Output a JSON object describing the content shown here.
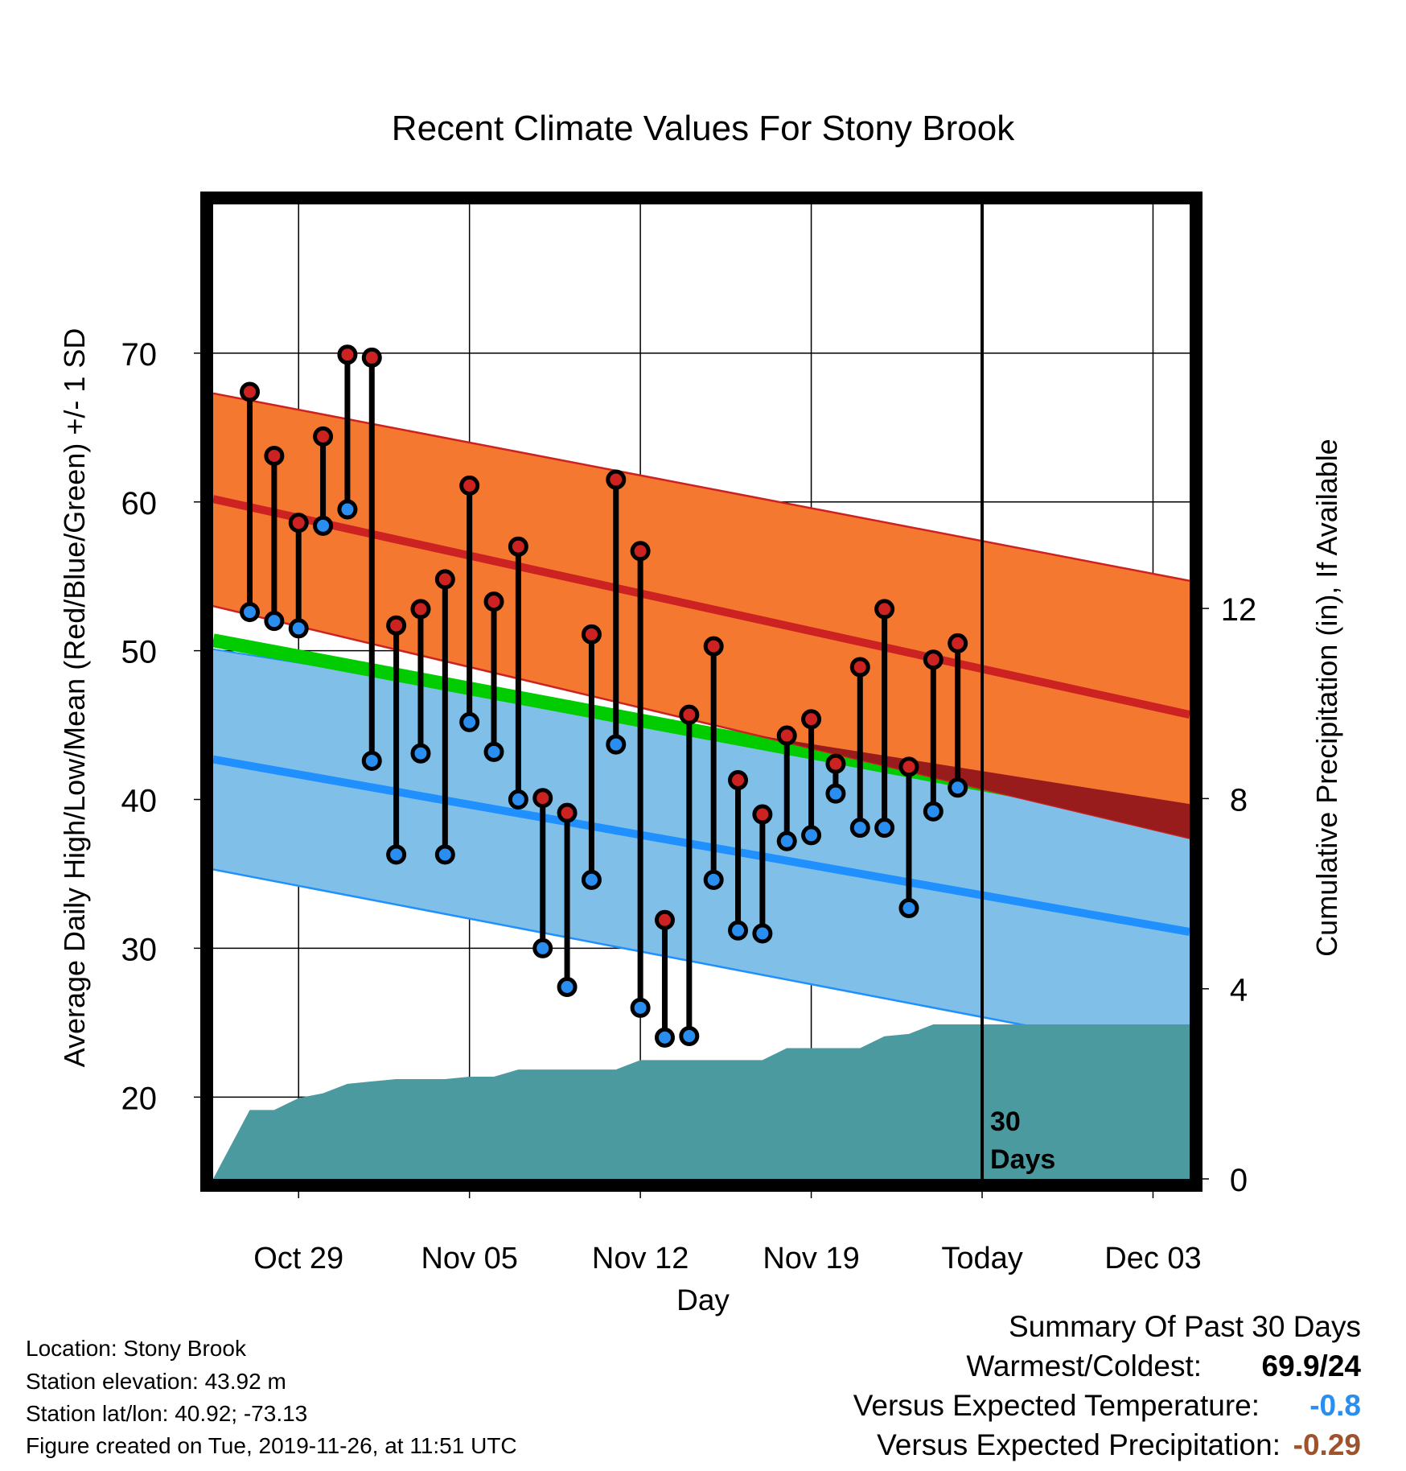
{
  "chart_data": {
    "type": "line",
    "title": "Recent Climate Values For Stony Brook",
    "xlabel": "Day",
    "ylabel": "Average Daily High/Low/Mean (Red/Blue/Green) +/- 1 SD",
    "y2label": "Cumulative Precipitation (in), If Available",
    "ylim": [
      14.5,
      80
    ],
    "y2lim": [
      0,
      20.5
    ],
    "yticks": [
      "20",
      "30",
      "40",
      "50",
      "60",
      "70"
    ],
    "y2ticks": [
      "0",
      "4",
      "8",
      "12"
    ],
    "xlim_days": [
      -3.5,
      36.5
    ],
    "xticks": [
      {
        "day": 0,
        "label": "Oct 29"
      },
      {
        "day": 7,
        "label": "Nov 05"
      },
      {
        "day": 14,
        "label": "Nov 12"
      },
      {
        "day": 21,
        "label": "Nov 19"
      },
      {
        "day": 28,
        "label": "Today"
      },
      {
        "day": 35,
        "label": "Dec 03"
      }
    ],
    "today_marker": {
      "day": 28,
      "label_line1": "30",
      "label_line2": "Days"
    },
    "normals": {
      "high_mean": {
        "start": 60.2,
        "end": 45.7
      },
      "high_upper": {
        "start": 67.3,
        "end": 54.7
      },
      "high_lower": {
        "start": 53.0,
        "end": 37.4
      },
      "low_mean": {
        "start": 42.7,
        "end": 31.1
      },
      "low_upper": {
        "start": 50.1,
        "end": 39.7
      },
      "low_lower": {
        "start": 35.3,
        "end": 22.7
      },
      "mean_mean": {
        "start": 50.7,
        "end": 38.4
      }
    },
    "colors": {
      "high_band": "#f47830",
      "high_line": "#cc2222",
      "low_band": "#80c0e8",
      "low_line": "#2090ff",
      "mean_line": "#00cc00",
      "overlap": "#991c1c",
      "precip": "#4a9aa0",
      "high_dot": "#cc2222",
      "low_dot": "#2a8ef0"
    },
    "series": [
      {
        "name": "High",
        "days": [
          -2,
          -1,
          0,
          1,
          2,
          3,
          4,
          5,
          6,
          7,
          8,
          9,
          10,
          11,
          12,
          13,
          14,
          15,
          16,
          17,
          18,
          19,
          20,
          21,
          22,
          23,
          24,
          25,
          26,
          27
        ],
        "values": [
          67.4,
          63.1,
          58.6,
          64.4,
          69.9,
          69.7,
          51.7,
          52.8,
          54.8,
          61.1,
          53.3,
          57.0,
          40.1,
          39.1,
          51.1,
          61.5,
          56.7,
          31.9,
          45.7,
          50.3,
          41.3,
          39.0,
          44.3,
          45.4,
          42.4,
          48.9,
          52.8,
          42.2,
          49.4,
          50.5
        ]
      },
      {
        "name": "Low",
        "days": [
          -2,
          -1,
          0,
          1,
          2,
          3,
          4,
          5,
          6,
          7,
          8,
          9,
          10,
          11,
          12,
          13,
          14,
          15,
          16,
          17,
          18,
          19,
          20,
          21,
          22,
          23,
          24,
          25,
          26,
          27
        ],
        "values": [
          52.6,
          52.0,
          51.5,
          58.4,
          59.5,
          42.6,
          36.3,
          43.1,
          36.3,
          45.2,
          43.2,
          40.0,
          30.0,
          27.4,
          34.6,
          43.7,
          26.0,
          24.0,
          24.1,
          34.6,
          31.2,
          31.0,
          37.2,
          37.6,
          40.4,
          38.1,
          38.1,
          32.7,
          39.2,
          40.8
        ]
      },
      {
        "name": "Cumulative Precipitation",
        "days": [
          -3.5,
          -2,
          -1,
          0,
          1,
          2,
          3,
          4,
          5,
          6,
          7,
          8,
          9,
          10,
          11,
          12,
          13,
          14,
          15,
          16,
          17,
          18,
          19,
          20,
          21,
          22,
          23,
          24,
          25,
          26,
          36.5
        ],
        "values": [
          0,
          1.45,
          1.45,
          1.7,
          1.8,
          2.0,
          2.05,
          2.1,
          2.1,
          2.1,
          2.15,
          2.15,
          2.3,
          2.3,
          2.3,
          2.3,
          2.3,
          2.5,
          2.5,
          2.5,
          2.5,
          2.5,
          2.5,
          2.75,
          2.75,
          2.75,
          2.75,
          3.0,
          3.05,
          3.25,
          3.25
        ]
      }
    ]
  },
  "info": {
    "location": "Location: Stony Brook",
    "elevation": "Station elevation: 43.92 m",
    "latlon": "Station lat/lon: 40.92; -73.13",
    "created": "Figure created on Tue, 2019-11-26, at 11:51 UTC"
  },
  "summary": {
    "heading": "Summary Of Past 30 Days",
    "warmest_label": "Warmest/Coldest:",
    "warmest_value": "69.9/24",
    "temp_label": "Versus Expected Temperature:",
    "temp_value": "-0.8",
    "temp_color": "#2a8ef0",
    "precip_label": "Versus Expected Precipitation:",
    "precip_value": "-0.29",
    "precip_color": "#a0522d"
  }
}
